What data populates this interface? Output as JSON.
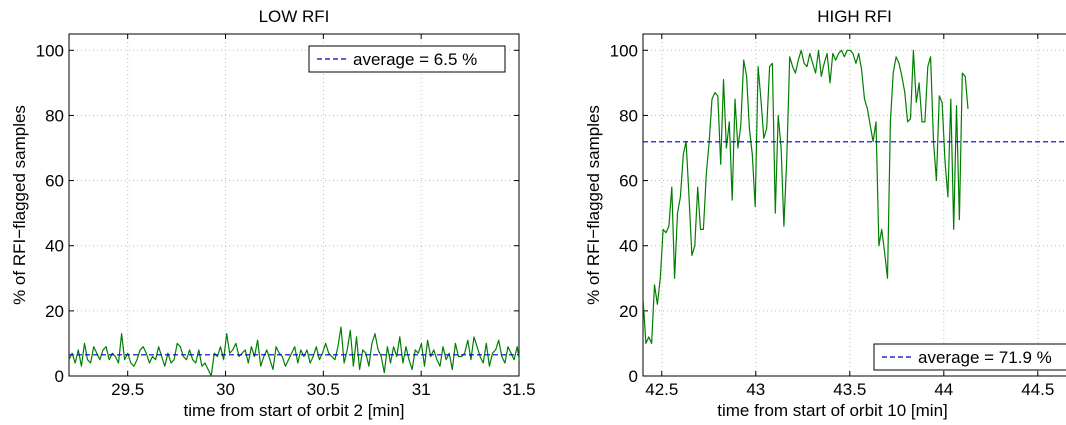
{
  "chart_data": [
    {
      "type": "line",
      "title": "LOW RFI",
      "xlabel": "time from start of orbit 2 [min]",
      "ylabel": "% of RFI−flagged samples",
      "xlim": [
        29.2,
        31.5
      ],
      "ylim": [
        0,
        105
      ],
      "xticks": [
        29.5,
        30,
        30.5,
        31,
        31.5
      ],
      "xtick_labels": [
        "29.5",
        "30",
        "30.5",
        "31",
        "31.5"
      ],
      "yticks": [
        0,
        20,
        40,
        60,
        80,
        100
      ],
      "ytick_labels": [
        "0",
        "20",
        "40",
        "60",
        "80",
        "100"
      ],
      "grid": true,
      "legend": {
        "text": "average = 6.5 %",
        "placement": "top-right"
      },
      "series": [
        {
          "kind": "data",
          "color": "#007f00",
          "x_start": 29.2,
          "x_step": 0.0158,
          "values": [
            5,
            7,
            4,
            8,
            3,
            10,
            5,
            4,
            9,
            7,
            5,
            8,
            9,
            5,
            7,
            6,
            4,
            13,
            5,
            7,
            4,
            3,
            5,
            8,
            9,
            7,
            4,
            6,
            5,
            9,
            6,
            3,
            7,
            4,
            5,
            10,
            9,
            6,
            5,
            8,
            5,
            4,
            8,
            3,
            4,
            2,
            0,
            7,
            6,
            9,
            5,
            13,
            7,
            8,
            10,
            6,
            7,
            8,
            4,
            9,
            6,
            11,
            3,
            6,
            8,
            5,
            2,
            9,
            7,
            6,
            3,
            5,
            7,
            9,
            4,
            8,
            6,
            8,
            4,
            6,
            9,
            5,
            7,
            10,
            7,
            6,
            5,
            9,
            15,
            4,
            8,
            14,
            3,
            12,
            2,
            8,
            7,
            3,
            10,
            13,
            8,
            6,
            1,
            9,
            4,
            9,
            6,
            12,
            4,
            9,
            5,
            2,
            8,
            7,
            10,
            3,
            11,
            6,
            8,
            5,
            3,
            9,
            5,
            7,
            2,
            10,
            6,
            6,
            7,
            11,
            5,
            12,
            9,
            6,
            4,
            10,
            3,
            7,
            8,
            11,
            6,
            4,
            9,
            7,
            5,
            9,
            3
          ]
        },
        {
          "kind": "average",
          "color": "#0000cc",
          "value": 6.5
        }
      ]
    },
    {
      "type": "line",
      "title": "HIGH RFI",
      "xlabel": "time from start of orbit 10 [min]",
      "ylabel": "% of RFI−flagged samples",
      "xlim": [
        42.4,
        44.65
      ],
      "ylim": [
        0,
        105
      ],
      "xticks": [
        42.5,
        43,
        43.5,
        44,
        44.5
      ],
      "xtick_labels": [
        "42.5",
        "43",
        "43.5",
        "44",
        "44.5"
      ],
      "yticks": [
        0,
        20,
        40,
        60,
        80,
        100
      ],
      "ytick_labels": [
        "0",
        "20",
        "40",
        "60",
        "80",
        "100"
      ],
      "grid": true,
      "legend": {
        "text": "average = 71.9 %",
        "placement": "bottom-right"
      },
      "series": [
        {
          "kind": "data",
          "color": "#007f00",
          "x_start": 42.4,
          "x_step": 0.0153,
          "values": [
            24,
            10,
            12,
            10,
            28,
            22,
            30,
            45,
            44,
            46,
            58,
            30,
            50,
            55,
            68,
            72,
            55,
            37,
            40,
            58,
            45,
            45,
            62,
            72,
            85,
            87,
            86,
            65,
            91,
            70,
            78,
            54,
            85,
            70,
            77,
            97,
            92,
            76,
            68,
            52,
            95,
            85,
            73,
            76,
            95,
            96,
            50,
            80,
            70,
            46,
            67,
            98,
            95,
            93,
            97,
            100,
            96,
            95,
            99,
            96,
            93,
            100,
            92,
            96,
            99,
            90,
            99,
            97,
            99,
            100,
            98,
            100,
            100,
            99,
            96,
            99,
            94,
            85,
            82,
            77,
            72,
            78,
            40,
            45,
            38,
            30,
            78,
            93,
            98,
            96,
            92,
            87,
            78,
            79,
            100,
            84,
            90,
            78,
            78,
            95,
            98,
            72,
            60,
            86,
            84,
            66,
            55,
            85,
            45,
            83,
            48,
            93,
            92,
            82
          ]
        },
        {
          "kind": "average",
          "color": "#0000cc",
          "value": 71.9
        }
      ]
    }
  ]
}
